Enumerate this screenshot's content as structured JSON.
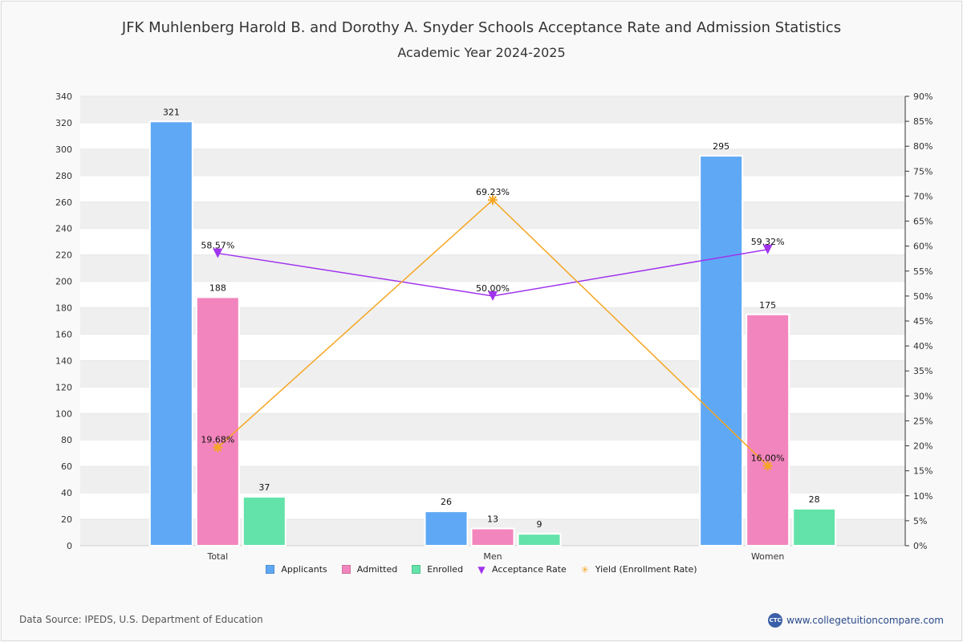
{
  "title": "JFK Muhlenberg Harold B. and Dorothy A. Snyder Schools Acceptance Rate and Admission Statistics",
  "subtitle": "Academic Year 2024-2025",
  "source": "Data Source: IPEDS, U.S. Department of Education",
  "brand": {
    "logo_text": "CTC",
    "url_text": "www.collegetuitioncompare.com"
  },
  "colors": {
    "applicants": "#5fa8f5",
    "admitted": "#f285bd",
    "enrolled": "#63e3a9",
    "acceptance": "#a033ee",
    "yield": "#f5a623",
    "band": "#efefef",
    "plot_bg": "#ffffff"
  },
  "chart_data": {
    "type": "bar",
    "categories": [
      "Total",
      "Men",
      "Women"
    ],
    "series": [
      {
        "name": "Applicants",
        "values": [
          321,
          26,
          295
        ]
      },
      {
        "name": "Admitted",
        "values": [
          188,
          13,
          175
        ]
      },
      {
        "name": "Enrolled",
        "values": [
          37,
          9,
          28
        ]
      }
    ],
    "line_series": [
      {
        "name": "Acceptance Rate",
        "values": [
          58.57,
          50.0,
          59.32
        ],
        "labels": [
          "58.57%",
          "50.00%",
          "59.32%"
        ],
        "marker": "triangle-down"
      },
      {
        "name": "Yield (Enrollment Rate)",
        "values": [
          19.68,
          69.23,
          16.0
        ],
        "labels": [
          "19.68%",
          "69.23%",
          "16.00%"
        ],
        "marker": "star"
      }
    ],
    "ylim": [
      0,
      340
    ],
    "y_ticks": [
      0,
      20,
      40,
      60,
      80,
      100,
      120,
      140,
      160,
      180,
      200,
      220,
      240,
      260,
      280,
      300,
      320,
      340
    ],
    "y2lim": [
      0,
      90
    ],
    "y2_ticks": [
      "0%",
      "5%",
      "10%",
      "15%",
      "20%",
      "25%",
      "30%",
      "35%",
      "40%",
      "45%",
      "50%",
      "55%",
      "60%",
      "65%",
      "70%",
      "75%",
      "80%",
      "85%",
      "90%"
    ],
    "legend": [
      {
        "label": "Applicants",
        "kind": "bar",
        "color_key": "applicants"
      },
      {
        "label": "Admitted",
        "kind": "bar",
        "color_key": "admitted"
      },
      {
        "label": "Enrolled",
        "kind": "bar",
        "color_key": "enrolled"
      },
      {
        "label": "Acceptance Rate",
        "kind": "line",
        "color_key": "acceptance",
        "glyph": "▼"
      },
      {
        "label": "Yield (Enrollment Rate)",
        "kind": "line",
        "color_key": "yield",
        "glyph": "✳"
      }
    ]
  }
}
